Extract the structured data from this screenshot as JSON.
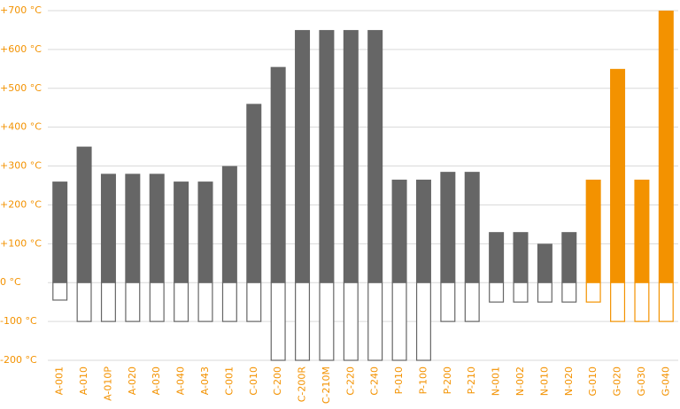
{
  "chart_data": {
    "type": "bar",
    "categories": [
      "A-001",
      "A-010",
      "A-010P",
      "A-020",
      "A-030",
      "A-040",
      "A-043",
      "C-001",
      "C-010",
      "C-200",
      "C-200R",
      "C-210M",
      "C-220",
      "C-240",
      "P-010",
      "P-100",
      "P-200",
      "P-210",
      "N-001",
      "N-002",
      "N-010",
      "N-020",
      "G-010",
      "G-020",
      "G-030",
      "G-040"
    ],
    "values": [
      260,
      350,
      280,
      280,
      280,
      260,
      260,
      300,
      460,
      555,
      650,
      650,
      650,
      650,
      265,
      265,
      285,
      285,
      130,
      130,
      100,
      130,
      265,
      550,
      265,
      700
    ],
    "min_values": [
      -45,
      -100,
      -100,
      -100,
      -100,
      -100,
      -100,
      -100,
      -100,
      -200,
      -200,
      -200,
      -200,
      -200,
      -200,
      -200,
      -100,
      -100,
      -50,
      -50,
      -50,
      -50,
      -50,
      -100,
      -100,
      -100
    ],
    "colors": [
      "#666666",
      "#666666",
      "#666666",
      "#666666",
      "#666666",
      "#666666",
      "#666666",
      "#666666",
      "#666666",
      "#666666",
      "#666666",
      "#666666",
      "#666666",
      "#666666",
      "#666666",
      "#666666",
      "#666666",
      "#666666",
      "#666666",
      "#666666",
      "#666666",
      "#666666",
      "#f39200",
      "#f39200",
      "#f39200",
      "#f39200"
    ],
    "ylim": [
      -200,
      700
    ],
    "yticks": [
      {
        "value": 700,
        "label": "+700 °C"
      },
      {
        "value": 600,
        "label": "+600 °C"
      },
      {
        "value": 500,
        "label": "+500 °C"
      },
      {
        "value": 400,
        "label": "+400 °C"
      },
      {
        "value": 300,
        "label": "+300 °C"
      },
      {
        "value": 200,
        "label": "+200 °C"
      },
      {
        "value": 100,
        "label": "+100 °C"
      },
      {
        "value": 0,
        "label": "0 °C"
      },
      {
        "value": -100,
        "label": "-100 °C"
      },
      {
        "value": -200,
        "label": "-200 °C"
      }
    ],
    "grid": true
  }
}
